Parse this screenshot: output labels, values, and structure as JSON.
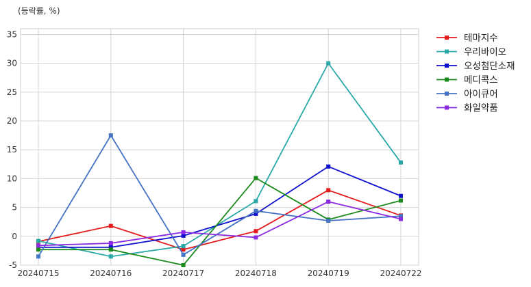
{
  "chart_data": {
    "type": "line",
    "unit_label": "(등락률, %)",
    "x": [
      "20240715",
      "20240716",
      "20240717",
      "20240718",
      "20240719",
      "20240722"
    ],
    "ylim": [
      -5,
      36
    ],
    "yticks": [
      -5,
      0,
      5,
      10,
      15,
      20,
      25,
      30,
      35
    ],
    "grid": true,
    "legend_position": "right",
    "series": [
      {
        "name": "테마지수",
        "color": "#e31a1c",
        "values": [
          -0.9,
          1.8,
          -2.3,
          0.9,
          8.0,
          3.6
        ]
      },
      {
        "name": "우리바이오",
        "color": "#2aa8a8",
        "values": [
          -0.8,
          -3.5,
          -1.7,
          6.1,
          30.0,
          12.8
        ]
      },
      {
        "name": "오성첨단소재",
        "color": "#1010d0",
        "values": [
          -1.9,
          -1.9,
          0.1,
          3.9,
          12.1,
          7.0
        ]
      },
      {
        "name": "메디콕스",
        "color": "#1a8a1a",
        "values": [
          -2.3,
          -2.3,
          -5.0,
          10.1,
          2.9,
          6.2
        ]
      },
      {
        "name": "아이큐어",
        "color": "#4472c4",
        "values": [
          -3.5,
          17.5,
          -3.2,
          4.4,
          2.7,
          3.5
        ]
      },
      {
        "name": "화일약품",
        "color": "#8a2be2",
        "values": [
          -1.6,
          -1.2,
          0.7,
          -0.2,
          6.0,
          3.0
        ]
      }
    ]
  }
}
